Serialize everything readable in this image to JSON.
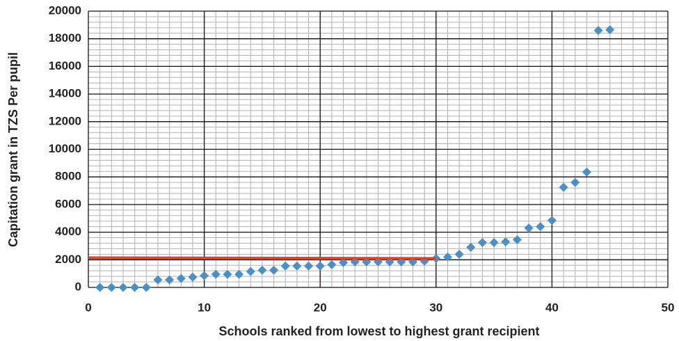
{
  "chart_data": {
    "type": "scatter",
    "xlabel": "Schools ranked from lowest to highest grant recipient",
    "ylabel": "Capitation grant in TZS Per pupil",
    "xlim": [
      0,
      50
    ],
    "xticks": [
      0,
      10,
      20,
      30,
      40,
      50
    ],
    "ylim": [
      0,
      20000
    ],
    "yticks": [
      0,
      2000,
      4000,
      6000,
      8000,
      10000,
      12000,
      14000,
      16000,
      18000,
      20000
    ],
    "grid": true,
    "minor_grid": {
      "x": 1,
      "y": 400
    },
    "series": [
      {
        "color": "#4a90c8",
        "marker": "diamond",
        "x": [
          1,
          2,
          3,
          4,
          5,
          6,
          7,
          8,
          9,
          10,
          11,
          12,
          13,
          14,
          15,
          16,
          17,
          18,
          19,
          20,
          21,
          22,
          23,
          24,
          25,
          26,
          27,
          28,
          29,
          30,
          31,
          32,
          33,
          34,
          35,
          36,
          37,
          38,
          39,
          40,
          41,
          42,
          43,
          44,
          45
        ],
        "values": [
          0,
          0,
          0,
          0,
          0,
          550,
          550,
          650,
          750,
          850,
          950,
          950,
          950,
          1150,
          1250,
          1250,
          1550,
          1550,
          1550,
          1550,
          1650,
          1800,
          1850,
          1850,
          1850,
          1850,
          1850,
          1850,
          1900,
          2100,
          2200,
          2400,
          2900,
          3250,
          3250,
          3300,
          3450,
          4300,
          4400,
          4850,
          7250,
          7600,
          8350,
          18600,
          18650
        ]
      },
      {
        "color": "#d9462b",
        "type": "line",
        "x": [
          0,
          30
        ],
        "values": [
          2150,
          2100
        ]
      }
    ]
  }
}
